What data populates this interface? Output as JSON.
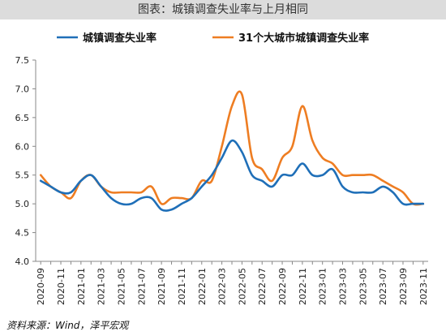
{
  "header": {
    "title": "图表：城镇调查失业率与上月相同"
  },
  "source": {
    "text": "资料来源：Wind，泽平宏观"
  },
  "chart_data": {
    "type": "line",
    "title": "图表：城镇调查失业率与上月相同",
    "xlabel": "",
    "ylabel": "",
    "ylim": [
      4.0,
      7.5
    ],
    "yticks": [
      "7.5",
      "7.0",
      "6.5",
      "6.0",
      "5.5",
      "5.0",
      "4.5",
      "4.0"
    ],
    "grid": false,
    "legend": "top",
    "x": [
      "2020-09",
      "2020-10",
      "2020-11",
      "2020-12",
      "2021-01",
      "2021-02",
      "2021-03",
      "2021-04",
      "2021-05",
      "2021-06",
      "2021-07",
      "2021-08",
      "2021-09",
      "2021-10",
      "2021-11",
      "2021-12",
      "2022-01",
      "2022-02",
      "2022-03",
      "2022-04",
      "2022-05",
      "2022-06",
      "2022-07",
      "2022-08",
      "2022-09",
      "2022-10",
      "2022-11",
      "2022-12",
      "2023-01",
      "2023-02",
      "2023-03",
      "2023-04",
      "2023-05",
      "2023-06",
      "2023-07",
      "2023-08",
      "2023-09",
      "2023-10",
      "2023-11"
    ],
    "xtick_labels": [
      "2020-09",
      "2020-11",
      "2021-01",
      "2021-03",
      "2021-05",
      "2021-07",
      "2021-09",
      "2021-11",
      "2022-01",
      "2022-03",
      "2022-05",
      "2022-07",
      "2022-09",
      "2022-11",
      "2023-01",
      "2023-03",
      "2023-05",
      "2023-07",
      "2023-09",
      "2023-11"
    ],
    "series": [
      {
        "name": "城镇调查失业率",
        "color": "#1f6fb8",
        "values": [
          5.4,
          5.3,
          5.2,
          5.2,
          5.4,
          5.5,
          5.3,
          5.1,
          5.0,
          5.0,
          5.1,
          5.1,
          4.9,
          4.9,
          5.0,
          5.1,
          5.3,
          5.5,
          5.8,
          6.1,
          5.9,
          5.5,
          5.4,
          5.3,
          5.5,
          5.5,
          5.7,
          5.5,
          5.5,
          5.6,
          5.3,
          5.2,
          5.2,
          5.2,
          5.3,
          5.2,
          5.0,
          5.0,
          5.0
        ]
      },
      {
        "name": "31个大城市城镇调查失业率",
        "color": "#ee7d22",
        "values": [
          5.5,
          5.3,
          5.2,
          5.1,
          5.4,
          5.5,
          5.3,
          5.2,
          5.2,
          5.2,
          5.2,
          5.3,
          5.0,
          5.1,
          5.1,
          5.1,
          5.4,
          5.4,
          6.0,
          6.7,
          6.9,
          5.8,
          5.6,
          5.4,
          5.8,
          6.0,
          6.7,
          6.1,
          5.8,
          5.7,
          5.5,
          5.5,
          5.5,
          5.5,
          5.4,
          5.3,
          5.2,
          5.0,
          5.0
        ]
      }
    ]
  }
}
